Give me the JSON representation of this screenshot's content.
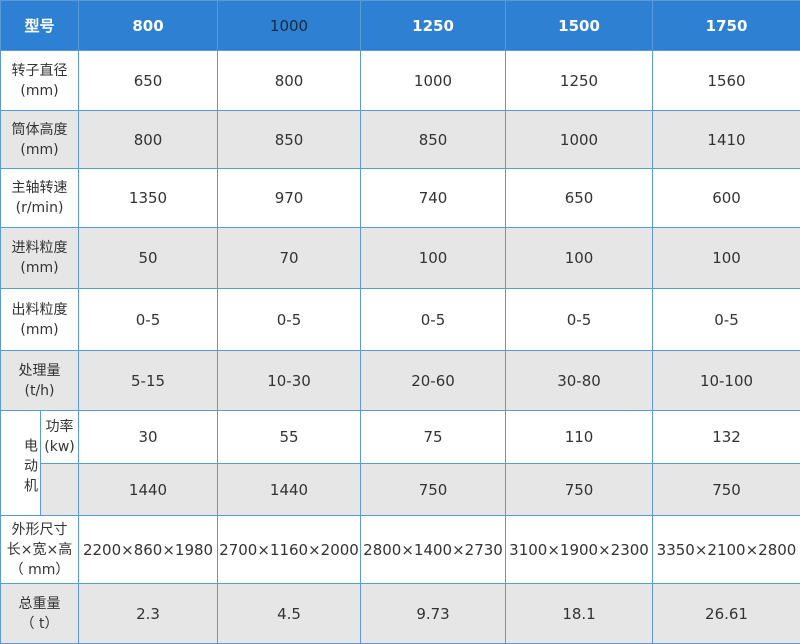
{
  "header": [
    "型号",
    "800",
    "1000",
    "1250",
    "1500",
    "1750"
  ],
  "rows": [
    {
      "label": [
        "转子直径",
        "(mm)"
      ],
      "values": [
        "650",
        "800",
        "1000",
        "1250",
        "1560"
      ]
    },
    {
      "label": [
        "筒体高度",
        "(mm)"
      ],
      "values": [
        "800",
        "850",
        "850",
        "1000",
        "1410"
      ]
    },
    {
      "label": [
        "主轴转速",
        "(r/min)"
      ],
      "values": [
        "1350",
        "970",
        "740",
        "650",
        "600"
      ]
    },
    {
      "label": [
        "进料粒度",
        "(mm)"
      ],
      "values": [
        "50",
        "70",
        "100",
        "100",
        "100"
      ]
    },
    {
      "label": [
        "出料粒度",
        "(mm)"
      ],
      "values": [
        "0-5",
        "0-5",
        "0-5",
        "0-5",
        "0-5"
      ]
    },
    {
      "label": [
        "处理量",
        "(t/h)"
      ],
      "values": [
        "5-15",
        "10-30",
        "20-60",
        "30-80",
        "10-100"
      ]
    }
  ],
  "motor": {
    "label": "电动机",
    "power_label": [
      "功率",
      "(kw)"
    ],
    "power": [
      "30",
      "55",
      "75",
      "110",
      "132"
    ],
    "speed": [
      "1440",
      "1440",
      "750",
      "750",
      "750"
    ]
  },
  "rows_lower": [
    {
      "label": [
        "外形尺寸",
        "长×宽×高",
        "（ mm）"
      ],
      "values": [
        "2200×860×1980",
        "2700×1160×2000",
        "2800×1400×2730",
        "3100×1900×2300",
        "3350×2100×2800"
      ]
    },
    {
      "label": [
        "总重量",
        "（ t）"
      ],
      "values": [
        "2.3",
        "4.5",
        "9.73",
        "18.1",
        "26.61"
      ]
    }
  ]
}
